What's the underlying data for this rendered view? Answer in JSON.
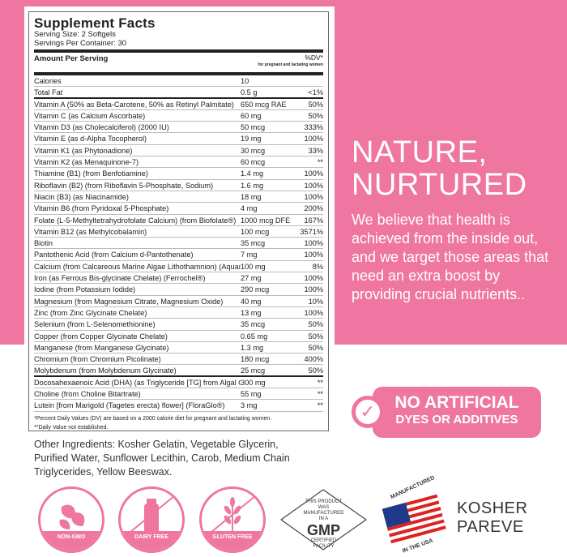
{
  "brand_color": "#ee76a0",
  "facts": {
    "title": "Supplement Facts",
    "serving_size": "Serving Size: 2 Softgels",
    "servings_per_container": "Servings Per Container: 30",
    "amount_header": "Amount Per Serving",
    "dv_header": "%DV*",
    "dv_note": "for pregnant and lactating women",
    "rows": [
      {
        "name": "Calories",
        "amount": "10",
        "dv": ""
      },
      {
        "name": "Total Fat",
        "amount": "0.5 g",
        "dv": "<1%"
      },
      {
        "name": "Vitamin A (50% as Beta-Carotene, 50% as Retinyl Palmitate)",
        "amount": "650 mcg RAE",
        "dv": "50%"
      },
      {
        "name": "Vitamin C (as Calcium Ascorbate)",
        "amount": "60 mg",
        "dv": "50%"
      },
      {
        "name": "Vitamin D3 (as Cholecalciferol) (2000 IU)",
        "amount": "50 mcg",
        "dv": "333%"
      },
      {
        "name": "Vitamin E (as d-Alpha Tocopherol)",
        "amount": "19 mg",
        "dv": "100%"
      },
      {
        "name": "Vitamin K1 (as Phytonadione)",
        "amount": "30 mcg",
        "dv": "33%"
      },
      {
        "name": "Vitamin K2 (as Menaquinone-7)",
        "amount": "60 mcg",
        "dv": "**"
      },
      {
        "name": "Thiamine (B1) (from Benfotiamine)",
        "amount": "1.4 mg",
        "dv": "100%"
      },
      {
        "name": "Riboflavin (B2) (from Riboflavin 5-Phosphate, Sodium)",
        "amount": "1.6 mg",
        "dv": "100%"
      },
      {
        "name": "Niacin (B3) (as Niacinamide)",
        "amount": "18 mg",
        "dv": "100%"
      },
      {
        "name": "Vitamin B6 (from Pyridoxal 5-Phosphate)",
        "amount": "4 mg",
        "dv": "200%"
      },
      {
        "name": "Folate (L-5-Methyltetrahydrofolate Calcium) (from Biofolate®)",
        "amount": "1000 mcg DFE",
        "dv": "167%"
      },
      {
        "name": "Vitamin B12 (as Methylcobalamin)",
        "amount": "100 mcg",
        "dv": "3571%"
      },
      {
        "name": "Biotin",
        "amount": "35 mcg",
        "dv": "100%"
      },
      {
        "name": "Pantothenic Acid (from Calcium d-Pantothenate)",
        "amount": "7 mg",
        "dv": "100%"
      },
      {
        "name": "Calcium (from Calcareous Marine Algae Lithothamnion) (Aquamin®)",
        "amount": "100 mg",
        "dv": "8%"
      },
      {
        "name": "Iron (as Ferrous Bis-glycinate Chelate) (Ferrochel®)",
        "amount": "27 mg",
        "dv": "100%"
      },
      {
        "name": "Iodine (from Potassium Iodide)",
        "amount": "290 mcg",
        "dv": "100%"
      },
      {
        "name": "Magnesium (from Magnesium Citrate, Magnesium Oxide)",
        "amount": "40 mg",
        "dv": "10%"
      },
      {
        "name": "Zinc (from Zinc Glycinate Chelate)",
        "amount": "13 mg",
        "dv": "100%"
      },
      {
        "name": "Selenium (from L-Selenomethionine)",
        "amount": "35 mcg",
        "dv": "50%"
      },
      {
        "name": "Copper (from Copper Glycinate Chelate)",
        "amount": "0.65 mg",
        "dv": "50%"
      },
      {
        "name": "Manganese (from Manganese Glycinate)",
        "amount": "1.3 mg",
        "dv": "50%"
      },
      {
        "name": "Chromium (from Chromium Picolinate)",
        "amount": "180 mcg",
        "dv": "400%"
      },
      {
        "name": "Molybdenum (from Molybdenum Glycinate)",
        "amount": "25 mcg",
        "dv": "50%"
      },
      {
        "name": "Docosahexaenoic Acid (DHA) (as Triglyceride [TG] from Algal Oil)",
        "amount": "300 mg",
        "dv": "**"
      },
      {
        "name": "Choline (from Choline Bitartrate)",
        "amount": "55 mg",
        "dv": "**"
      },
      {
        "name": "Lutein [from Marigold (Tagetes erecta) flower] (FloraGlo®)",
        "amount": "3 mg",
        "dv": "**"
      }
    ],
    "footnote1": "*Percent Daily Values (DV) are based on a 2000 calorie diet for pregnant and lactating women.",
    "footnote2": "**Daily Value not established."
  },
  "other_ingredients": "Other Ingredients: Kosher Gelatin, Vegetable Glycerin, Purified Water, Sunflower Lecithin, Carob, Medium Chain Triglycerides, Yellow Beeswax.",
  "headline": {
    "line1": "NATURE,",
    "line2": "NURTURED"
  },
  "paragraph": "We believe that health is achieved from the inside out, and we target those areas that need an extra boost by providing crucial nutrients..",
  "badge": {
    "line1": "NO ARTIFICIAL",
    "line2": "DYES OR ADDITIVES",
    "icon": "check-icon"
  },
  "seals": [
    {
      "label": "NON-GMO",
      "icon": "leaves-icon"
    },
    {
      "label": "DAIRY FREE",
      "icon": "milk-bottle-icon"
    },
    {
      "label": "GLUTEN FREE",
      "icon": "wheat-icon"
    }
  ],
  "gmp": {
    "top": "THIS PRODUCT WAS MANUFACTURED IN A",
    "big": "GMP",
    "bottom": "CERTIFIED FACILITY"
  },
  "usa": {
    "top": "MANUFACTURED",
    "bottom": "IN THE USA"
  },
  "kosher": {
    "line1": "KOSHER",
    "line2": "PAREVE"
  }
}
